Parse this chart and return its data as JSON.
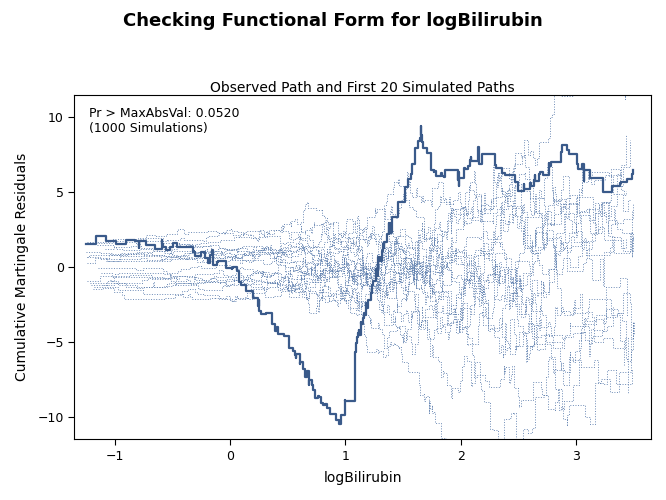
{
  "title": "Checking Functional Form for logBilirubin",
  "subtitle": "Observed Path and First 20 Simulated Paths",
  "xlabel": "logBilirubin",
  "ylabel": "Cumulative Martingale Residuals",
  "annotation_line1": "Pr > MaxAbsVal: 0.0520",
  "annotation_line2": "(1000 Simulations)",
  "xlim": [
    -1.35,
    3.65
  ],
  "ylim": [
    -11.5,
    11.5
  ],
  "xticks": [
    -1,
    0,
    1,
    2,
    3
  ],
  "yticks": [
    -10,
    -5,
    0,
    5,
    10
  ],
  "observed_color": "#3A5A8A",
  "simulated_color": "#5578AA",
  "background_color": "#FFFFFF",
  "title_fontsize": 13,
  "subtitle_fontsize": 10,
  "label_fontsize": 10,
  "tick_fontsize": 9,
  "annotation_fontsize": 9,
  "n_simulated": 20,
  "obs_lw": 1.6,
  "sim_lw": 0.7
}
